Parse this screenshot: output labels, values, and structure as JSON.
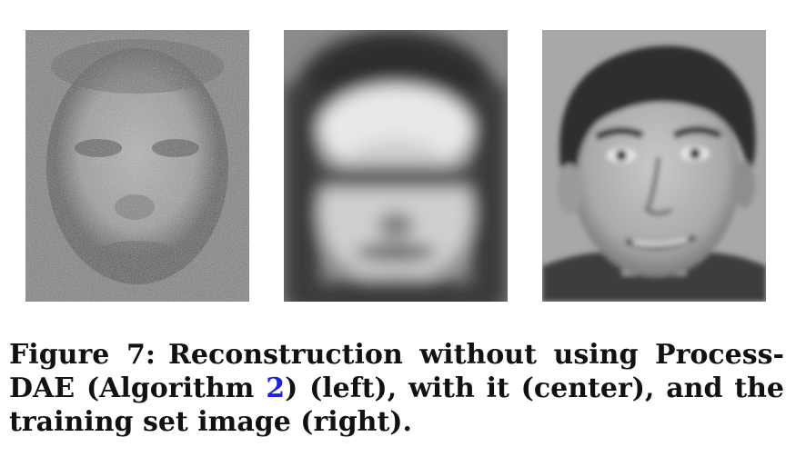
{
  "figure": {
    "panels": [
      {
        "id": "left",
        "description_icon": "noisy-face-image"
      },
      {
        "id": "center",
        "description_icon": "blurred-face-image"
      },
      {
        "id": "right",
        "description_icon": "face-photo-image"
      }
    ]
  },
  "caption": {
    "label": "Figure 7:",
    "text_before": "Reconstruction without using Process-DAE (Algorithm ",
    "ref": "2",
    "text_after": ") (left), with it (center), and the training set image (right).",
    "ref_color": "#1f1fe0"
  }
}
